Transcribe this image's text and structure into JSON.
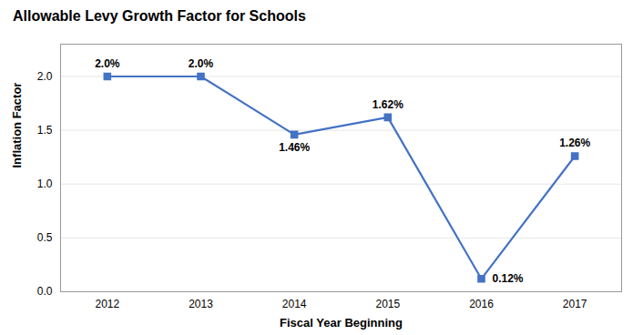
{
  "chart_data": {
    "type": "line",
    "title": "Allowable Levy Growth Factor for Schools",
    "xlabel": "Fiscal Year Beginning",
    "ylabel": "Inflation Factor",
    "x": [
      2012,
      2013,
      2014,
      2015,
      2016,
      2017
    ],
    "values": [
      2.0,
      2.0,
      1.46,
      1.62,
      0.12,
      1.26
    ],
    "value_labels": [
      "2.0%",
      "2.0%",
      "1.46%",
      "1.62%",
      "0.12%",
      "1.26%"
    ],
    "data_labels": true,
    "color": "#4472C4",
    "marker": "square",
    "xlim": [
      2011.5,
      2017.5
    ],
    "xticks": [
      2012,
      2013,
      2014,
      2015,
      2016,
      2017
    ],
    "ylim": [
      0.0,
      2.3
    ],
    "yticks": [
      {
        "value": 0.0,
        "label": "0.0"
      },
      0.5,
      {
        "value": 1.0,
        "label": "1.0"
      },
      1.5,
      {
        "value": 2.0,
        "label": "2.0"
      }
    ],
    "grid": true
  }
}
